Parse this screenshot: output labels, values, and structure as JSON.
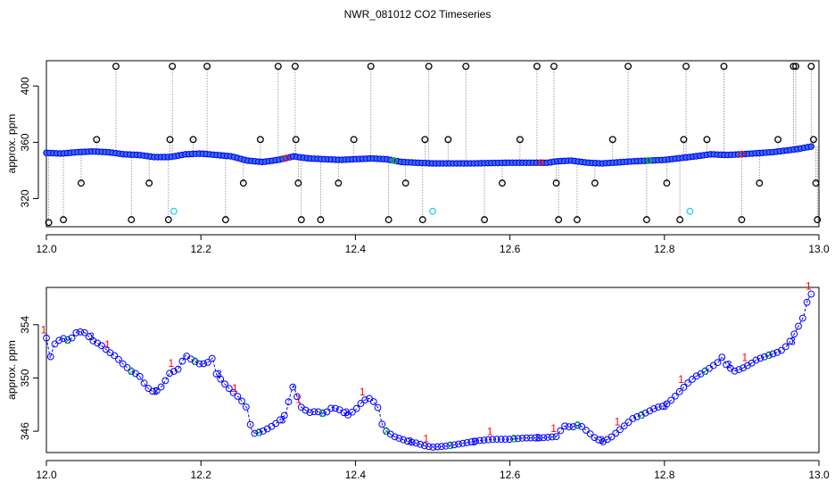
{
  "title": "NWR_081012  CO2 Timeseries",
  "colors": {
    "flask": "#000000",
    "series1": "#ff0000",
    "series2": "#00c000",
    "series3": "#0000ff",
    "fill": "#3a6ee0",
    "outlier": "#22d3ee",
    "dotted": "#888888"
  },
  "chart_data": [
    {
      "type": "scatter",
      "ylabel": "approx. ppm",
      "xlim": [
        12.0,
        13.0
      ],
      "ylim": [
        300,
        418
      ],
      "xticks": [
        "12.0",
        "12.2",
        "12.4",
        "12.6",
        "12.8",
        "13.0"
      ],
      "xtick_values": [
        12.0,
        12.2,
        12.4,
        12.6,
        12.8,
        13.0
      ],
      "yticks": [
        "320",
        "360",
        "400"
      ],
      "ytick_values": [
        320,
        360,
        400
      ],
      "baseline": [
        [
          12.0,
          352.5
        ],
        [
          12.02,
          352
        ],
        [
          12.04,
          353
        ],
        [
          12.06,
          353.5
        ],
        [
          12.08,
          353
        ],
        [
          12.1,
          351.5
        ],
        [
          12.12,
          351
        ],
        [
          12.14,
          349.5
        ],
        [
          12.16,
          349.5
        ],
        [
          12.18,
          351.5
        ],
        [
          12.2,
          352
        ],
        [
          12.22,
          351
        ],
        [
          12.24,
          350
        ],
        [
          12.26,
          347
        ],
        [
          12.28,
          346
        ],
        [
          12.3,
          347.5
        ],
        [
          12.32,
          350
        ],
        [
          12.34,
          348.5
        ],
        [
          12.36,
          348
        ],
        [
          12.38,
          347.5
        ],
        [
          12.4,
          348
        ],
        [
          12.42,
          348.5
        ],
        [
          12.44,
          348
        ],
        [
          12.46,
          346
        ],
        [
          12.48,
          345.5
        ],
        [
          12.5,
          345
        ],
        [
          12.55,
          345
        ],
        [
          12.6,
          345.5
        ],
        [
          12.65,
          345.5
        ],
        [
          12.66,
          346.5
        ],
        [
          12.68,
          347
        ],
        [
          12.7,
          345.5
        ],
        [
          12.72,
          345
        ],
        [
          12.76,
          346.5
        ],
        [
          12.8,
          347.5
        ],
        [
          12.84,
          350
        ],
        [
          12.86,
          351.5
        ],
        [
          12.88,
          351
        ],
        [
          12.9,
          351.5
        ],
        [
          12.94,
          353
        ],
        [
          12.97,
          355
        ],
        [
          12.99,
          357
        ]
      ],
      "spikes": [
        [
          12.003,
          303
        ],
        [
          12.022,
          305
        ],
        [
          12.045,
          331
        ],
        [
          12.065,
          362
        ],
        [
          12.09,
          414
        ],
        [
          12.11,
          305
        ],
        [
          12.133,
          331
        ],
        [
          12.158,
          305
        ],
        [
          12.16,
          362
        ],
        [
          12.163,
          414
        ],
        [
          12.19,
          362
        ],
        [
          12.208,
          414
        ],
        [
          12.232,
          305
        ],
        [
          12.255,
          331
        ],
        [
          12.277,
          362
        ],
        [
          12.3,
          414
        ],
        [
          12.322,
          414
        ],
        [
          12.323,
          362
        ],
        [
          12.326,
          331
        ],
        [
          12.33,
          305
        ],
        [
          12.355,
          305
        ],
        [
          12.378,
          331
        ],
        [
          12.398,
          362
        ],
        [
          12.42,
          414
        ],
        [
          12.443,
          305
        ],
        [
          12.465,
          331
        ],
        [
          12.487,
          305
        ],
        [
          12.49,
          362
        ],
        [
          12.495,
          414
        ],
        [
          12.52,
          362
        ],
        [
          12.543,
          414
        ],
        [
          12.567,
          305
        ],
        [
          12.59,
          331
        ],
        [
          12.613,
          362
        ],
        [
          12.635,
          414
        ],
        [
          12.657,
          414
        ],
        [
          12.66,
          331
        ],
        [
          12.663,
          305
        ],
        [
          12.687,
          305
        ],
        [
          12.71,
          331
        ],
        [
          12.733,
          362
        ],
        [
          12.753,
          414
        ],
        [
          12.777,
          305
        ],
        [
          12.803,
          331
        ],
        [
          12.82,
          305
        ],
        [
          12.825,
          362
        ],
        [
          12.828,
          414
        ],
        [
          12.855,
          362
        ],
        [
          12.877,
          414
        ],
        [
          12.9,
          305
        ],
        [
          12.923,
          331
        ],
        [
          12.947,
          362
        ],
        [
          12.967,
          414
        ],
        [
          12.97,
          414
        ],
        [
          12.99,
          414
        ],
        [
          12.993,
          362
        ],
        [
          12.996,
          331
        ],
        [
          12.998,
          305
        ]
      ],
      "outliers": [
        [
          12.165,
          311
        ],
        [
          12.5,
          311
        ],
        [
          12.833,
          311
        ]
      ]
    },
    {
      "type": "line",
      "ylabel": "approx. ppm",
      "xlim": [
        12.0,
        13.0
      ],
      "ylim": [
        344.4,
        356.8
      ],
      "xticks": [
        "12.0",
        "12.2",
        "12.4",
        "12.6",
        "12.8",
        "13.0"
      ],
      "xtick_values": [
        12.0,
        12.2,
        12.4,
        12.6,
        12.8,
        13.0
      ],
      "yticks": [
        "346",
        "350",
        "354"
      ],
      "ytick_values": [
        346,
        350,
        354
      ],
      "markers": [
        "1",
        "2",
        "3"
      ],
      "series": [
        {
          "values": [
            [
              12.0,
              353
            ],
            [
              12.005,
              351.5
            ],
            [
              12.01,
              352.5
            ],
            [
              12.02,
              353
            ],
            [
              12.03,
              352.8
            ],
            [
              12.04,
              353.5
            ],
            [
              12.05,
              353.4
            ],
            [
              12.06,
              352.8
            ],
            [
              12.07,
              352.5
            ],
            [
              12.08,
              352
            ],
            [
              12.09,
              351.6
            ],
            [
              12.1,
              351
            ],
            [
              12.11,
              350.5
            ],
            [
              12.12,
              350.2
            ],
            [
              12.13,
              349.3
            ],
            [
              12.14,
              348.9
            ],
            [
              12.15,
              349.4
            ],
            [
              12.16,
              350.4
            ],
            [
              12.17,
              350.6
            ],
            [
              12.18,
              351.7
            ],
            [
              12.19,
              351.3
            ],
            [
              12.2,
              351
            ],
            [
              12.21,
              351.2
            ],
            [
              12.215,
              351.5
            ],
            [
              12.22,
              350.3
            ],
            [
              12.23,
              349.6
            ],
            [
              12.24,
              349
            ],
            [
              12.25,
              348.5
            ],
            [
              12.26,
              347.7
            ],
            [
              12.265,
              346.2
            ],
            [
              12.27,
              345.8
            ],
            [
              12.28,
              346
            ],
            [
              12.29,
              346.3
            ],
            [
              12.3,
              346.7
            ],
            [
              12.31,
              347.3
            ],
            [
              12.315,
              348.6
            ],
            [
              12.32,
              349.5
            ],
            [
              12.325,
              348.5
            ],
            [
              12.33,
              347.8
            ],
            [
              12.34,
              347.4
            ],
            [
              12.35,
              347.5
            ],
            [
              12.36,
              347.3
            ],
            [
              12.37,
              347.8
            ],
            [
              12.38,
              347.6
            ],
            [
              12.39,
              347.2
            ],
            [
              12.4,
              347.6
            ],
            [
              12.41,
              348.3
            ],
            [
              12.42,
              348.5
            ],
            [
              12.43,
              347.7
            ],
            [
              12.435,
              346.4
            ],
            [
              12.44,
              346
            ],
            [
              12.45,
              345.6
            ],
            [
              12.46,
              345.4
            ],
            [
              12.47,
              345.2
            ],
            [
              12.48,
              345.1
            ],
            [
              12.49,
              344.9
            ],
            [
              12.5,
              344.8
            ],
            [
              12.52,
              344.9
            ],
            [
              12.54,
              345.1
            ],
            [
              12.56,
              345.3
            ],
            [
              12.58,
              345.4
            ],
            [
              12.6,
              345.4
            ],
            [
              12.62,
              345.5
            ],
            [
              12.64,
              345.5
            ],
            [
              12.66,
              345.6
            ],
            [
              12.67,
              346.4
            ],
            [
              12.68,
              346.3
            ],
            [
              12.69,
              346.5
            ],
            [
              12.7,
              346
            ],
            [
              12.71,
              345.5
            ],
            [
              12.72,
              345.2
            ],
            [
              12.73,
              345.5
            ],
            [
              12.74,
              346
            ],
            [
              12.75,
              346.5
            ],
            [
              12.76,
              347
            ],
            [
              12.77,
              347.2
            ],
            [
              12.78,
              347.5
            ],
            [
              12.79,
              347.8
            ],
            [
              12.8,
              347.9
            ],
            [
              12.81,
              348.4
            ],
            [
              12.82,
              349
            ],
            [
              12.83,
              349.6
            ],
            [
              12.84,
              350.1
            ],
            [
              12.85,
              350.4
            ],
            [
              12.86,
              350.8
            ],
            [
              12.87,
              351.2
            ],
            [
              12.875,
              351.6
            ],
            [
              12.88,
              351
            ],
            [
              12.89,
              350.5
            ],
            [
              12.9,
              350.7
            ],
            [
              12.91,
              351
            ],
            [
              12.92,
              351.4
            ],
            [
              12.93,
              351.6
            ],
            [
              12.94,
              351.8
            ],
            [
              12.95,
              352
            ],
            [
              12.96,
              352.5
            ],
            [
              12.97,
              353.5
            ],
            [
              12.98,
              354.6
            ],
            [
              12.985,
              355.8
            ],
            [
              12.99,
              356.3
            ]
          ]
        }
      ]
    }
  ]
}
